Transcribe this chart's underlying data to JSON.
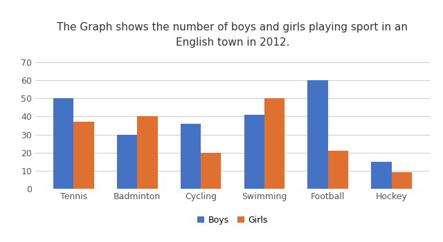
{
  "title": "The Graph shows the number of boys and girls playing sport in an\nEnglish town in 2012.",
  "categories": [
    "Tennis",
    "Badminton",
    "Cycling",
    "Swimming",
    "Football",
    "Hockey"
  ],
  "boys": [
    50,
    30,
    36,
    41,
    60,
    15
  ],
  "girls": [
    37,
    40,
    20,
    50,
    21,
    9
  ],
  "boys_color": "#4472C4",
  "girls_color": "#E07030",
  "ylim": [
    0,
    75
  ],
  "yticks": [
    0,
    10,
    20,
    30,
    40,
    50,
    60,
    70
  ],
  "legend_labels": [
    "Boys",
    "Girls"
  ],
  "bar_width": 0.32,
  "title_fontsize": 11,
  "tick_fontsize": 9,
  "legend_fontsize": 9,
  "background_color": "#ffffff",
  "grid_color": "#d0d0d0"
}
